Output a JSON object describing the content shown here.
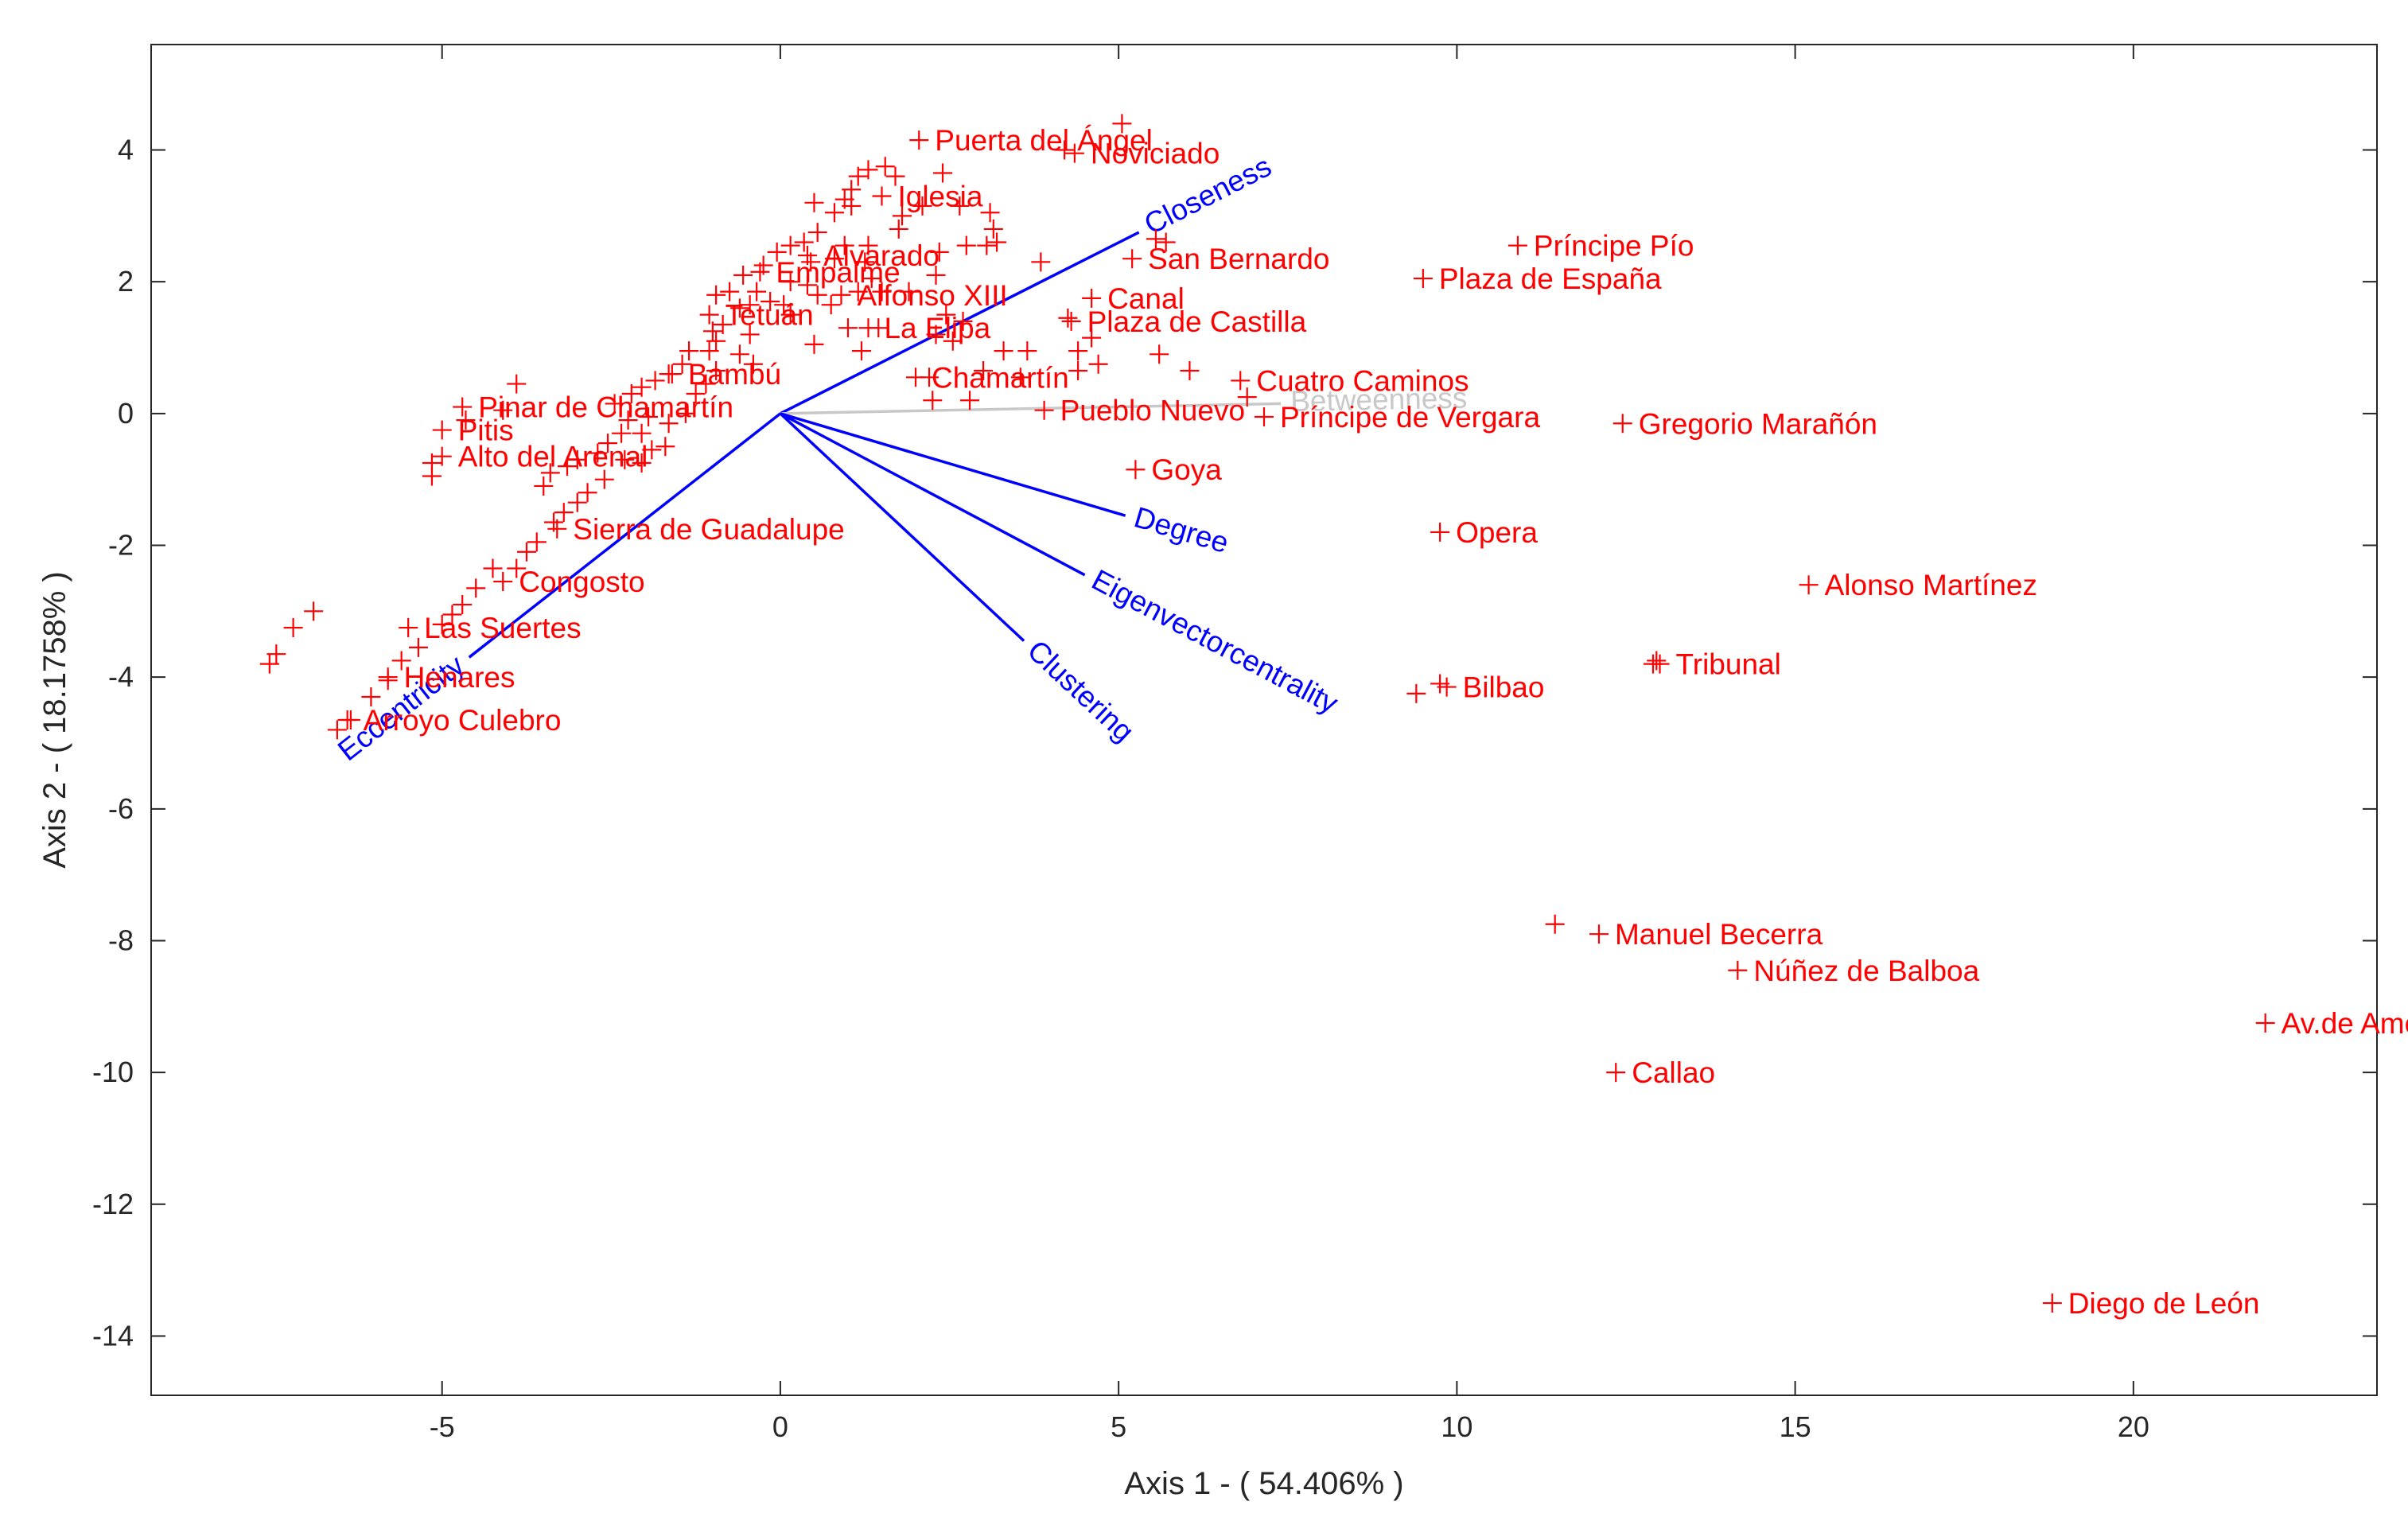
{
  "chart_data": {
    "type": "scatter",
    "subtype": "biplot",
    "title": "",
    "xlabel": "Axis 1 - ( 54.406% )",
    "ylabel": "Axis 2 - ( 18.1758% )",
    "xlim": [
      -9.3,
      23.6
    ],
    "ylim": [
      -14.9,
      5.6
    ],
    "xticks": [
      -5,
      0,
      5,
      10,
      15,
      20
    ],
    "yticks": [
      -14,
      -12,
      -10,
      -8,
      -6,
      -4,
      -2,
      0,
      2,
      4
    ],
    "grid": false,
    "colors": {
      "points": "#ff0000",
      "vectors": "#0000ff",
      "faded_vector": "#c8c8c8",
      "axes": "#262626"
    },
    "vectors": [
      {
        "name": "Closeness",
        "x": 5.3,
        "y": 2.75,
        "color": "#0000ff"
      },
      {
        "name": "Betweenness",
        "x": 7.4,
        "y": 0.15,
        "color": "#c8c8c8"
      },
      {
        "name": "Degree",
        "x": 5.1,
        "y": -1.55,
        "color": "#0000ff"
      },
      {
        "name": "Eigenvectorcentrality",
        "x": 4.5,
        "y": -2.45,
        "color": "#0000ff"
      },
      {
        "name": "Clustering",
        "x": 3.6,
        "y": -3.45,
        "color": "#0000ff"
      },
      {
        "name": "Eccentricity",
        "x": -4.6,
        "y": -3.7,
        "color": "#0000ff"
      }
    ],
    "labeled_points": [
      {
        "label": "Puerta del Ángel",
        "x": 2.05,
        "y": 4.15
      },
      {
        "label": "Noviciado",
        "x": 4.35,
        "y": 3.95
      },
      {
        "label": "Iglesia",
        "x": 1.5,
        "y": 3.3
      },
      {
        "label": "Closeness",
        "x": 5.45,
        "y": 2.7
      },
      {
        "label": "San Bernardo",
        "x": 5.2,
        "y": 2.35
      },
      {
        "label": "Alvarado",
        "x": 0.4,
        "y": 2.4
      },
      {
        "label": "Empalme",
        "x": -0.3,
        "y": 2.15
      },
      {
        "label": "Alfonso XIII",
        "x": 0.9,
        "y": 1.8
      },
      {
        "label": "Canal",
        "x": 4.6,
        "y": 1.75
      },
      {
        "label": "Tetuán",
        "x": -1.05,
        "y": 1.5
      },
      {
        "label": "La Elipa",
        "x": 1.3,
        "y": 1.3
      },
      {
        "label": "Plaza de Castilla",
        "x": 4.3,
        "y": 1.4
      },
      {
        "label": "Bambú",
        "x": -1.6,
        "y": 0.6
      },
      {
        "label": "Chamartín",
        "x": 2.0,
        "y": 0.55
      },
      {
        "label": "Cuatro Caminos",
        "x": 6.8,
        "y": 0.5
      },
      {
        "label": "Pinar de Chamartín",
        "x": -4.7,
        "y": 0.1
      },
      {
        "label": "Pueblo Nuevo",
        "x": 3.9,
        "y": 0.05
      },
      {
        "label": "Príncipe de Vergara",
        "x": 7.15,
        "y": -0.05
      },
      {
        "label": "Pitis",
        "x": -5.0,
        "y": -0.25
      },
      {
        "label": "Alto del Arenal",
        "x": -5.0,
        "y": -0.65
      },
      {
        "label": "Goya",
        "x": 5.25,
        "y": -0.85
      },
      {
        "label": "Sierra de Guadalupe",
        "x": -3.3,
        "y": -1.75
      },
      {
        "label": "Congosto",
        "x": -4.1,
        "y": -2.55
      },
      {
        "label": "Las Suertes",
        "x": -5.5,
        "y": -3.25
      },
      {
        "label": "Henares",
        "x": -5.8,
        "y": -4.0
      },
      {
        "label": "Arroyo Culebro",
        "x": -6.4,
        "y": -4.65
      },
      {
        "label": "Príncipe Pío",
        "x": 10.9,
        "y": 2.55
      },
      {
        "label": "Plaza de España",
        "x": 9.5,
        "y": 2.05
      },
      {
        "label": "Gregorio Marañón",
        "x": 12.45,
        "y": -0.15
      },
      {
        "label": "Opera",
        "x": 9.75,
        "y": -1.8
      },
      {
        "label": "Alonso Martínez",
        "x": 15.2,
        "y": -2.6
      },
      {
        "label": "Tribunal",
        "x": 13.0,
        "y": -3.8
      },
      {
        "label": "Bilbao",
        "x": 9.85,
        "y": -4.15
      },
      {
        "label": "Manuel Becerra",
        "x": 12.1,
        "y": -7.9
      },
      {
        "label": "Núñez de Balboa",
        "x": 14.15,
        "y": -8.45
      },
      {
        "label": "Callao",
        "x": 12.35,
        "y": -10.0
      },
      {
        "label": "Av.de América",
        "x": 21.95,
        "y": -9.25
      },
      {
        "label": "Diego de León",
        "x": 18.8,
        "y": -13.5
      }
    ],
    "unlabeled_points": [
      [
        5.05,
        4.4
      ],
      [
        4.2,
        4.0
      ],
      [
        2.4,
        3.65
      ],
      [
        1.3,
        3.7
      ],
      [
        1.55,
        3.75
      ],
      [
        1.7,
        3.6
      ],
      [
        1.15,
        3.6
      ],
      [
        1.05,
        3.4
      ],
      [
        0.95,
        3.25
      ],
      [
        0.5,
        3.2
      ],
      [
        0.8,
        3.05
      ],
      [
        1.05,
        3.15
      ],
      [
        1.8,
        3.0
      ],
      [
        2.1,
        3.15
      ],
      [
        2.65,
        3.15
      ],
      [
        3.1,
        3.05
      ],
      [
        3.15,
        2.8
      ],
      [
        3.05,
        2.55
      ],
      [
        3.2,
        2.6
      ],
      [
        1.75,
        2.8
      ],
      [
        1.3,
        2.55
      ],
      [
        0.95,
        2.55
      ],
      [
        0.55,
        2.75
      ],
      [
        0.35,
        2.6
      ],
      [
        0.15,
        2.55
      ],
      [
        -0.05,
        2.45
      ],
      [
        0.45,
        2.3
      ],
      [
        0.8,
        2.35
      ],
      [
        1.25,
        2.3
      ],
      [
        2.35,
        2.45
      ],
      [
        2.75,
        2.55
      ],
      [
        3.85,
        2.3
      ],
      [
        5.55,
        2.65
      ],
      [
        5.7,
        2.6
      ],
      [
        1.35,
        2.05
      ],
      [
        2.3,
        2.1
      ],
      [
        -0.25,
        2.25
      ],
      [
        -0.55,
        2.1
      ],
      [
        0.15,
        2.0
      ],
      [
        0.4,
        1.95
      ],
      [
        -0.35,
        1.85
      ],
      [
        -0.75,
        1.85
      ],
      [
        -0.95,
        1.8
      ],
      [
        0.55,
        1.8
      ],
      [
        0.75,
        1.65
      ],
      [
        1.15,
        1.85
      ],
      [
        1.5,
        1.85
      ],
      [
        1.9,
        1.85
      ],
      [
        2.45,
        1.5
      ],
      [
        2.7,
        1.4
      ],
      [
        0.05,
        1.65
      ],
      [
        0.15,
        1.5
      ],
      [
        -0.15,
        1.7
      ],
      [
        -0.45,
        1.65
      ],
      [
        -0.6,
        1.6
      ],
      [
        -0.85,
        1.35
      ],
      [
        -1.0,
        1.25
      ],
      [
        1.0,
        1.3
      ],
      [
        1.45,
        1.3
      ],
      [
        2.3,
        1.2
      ],
      [
        2.55,
        1.1
      ],
      [
        0.5,
        1.05
      ],
      [
        1.2,
        0.95
      ],
      [
        -0.45,
        1.2
      ],
      [
        -0.95,
        1.1
      ],
      [
        -1.05,
        0.95
      ],
      [
        -1.35,
        0.95
      ],
      [
        -0.4,
        0.75
      ],
      [
        -0.6,
        0.9
      ],
      [
        -0.95,
        0.65
      ],
      [
        -1.45,
        0.75
      ],
      [
        -1.65,
        0.6
      ],
      [
        3.3,
        0.95
      ],
      [
        3.65,
        0.95
      ],
      [
        4.4,
        0.95
      ],
      [
        4.7,
        0.75
      ],
      [
        5.6,
        0.9
      ],
      [
        6.05,
        0.65
      ],
      [
        -1.1,
        0.45
      ],
      [
        -1.25,
        0.3
      ],
      [
        -1.85,
        0.5
      ],
      [
        -2.05,
        0.4
      ],
      [
        -2.2,
        0.3
      ],
      [
        -2.45,
        0.15
      ],
      [
        -3.9,
        0.45
      ],
      [
        -4.1,
        0.05
      ],
      [
        2.2,
        0.55
      ],
      [
        3.0,
        0.65
      ],
      [
        3.55,
        0.55
      ],
      [
        4.4,
        0.65
      ],
      [
        2.25,
        0.2
      ],
      [
        2.8,
        0.2
      ],
      [
        -1.4,
        0.0
      ],
      [
        -1.65,
        -0.15
      ],
      [
        -1.95,
        -0.05
      ],
      [
        -2.25,
        -0.1
      ],
      [
        -2.05,
        -0.3
      ],
      [
        -2.35,
        -0.3
      ],
      [
        -2.55,
        -0.45
      ],
      [
        -2.7,
        -0.6
      ],
      [
        -2.3,
        -0.7
      ],
      [
        -2.05,
        -0.75
      ],
      [
        -1.9,
        -0.55
      ],
      [
        -1.7,
        -0.5
      ],
      [
        -3.0,
        -0.7
      ],
      [
        -3.15,
        -0.8
      ],
      [
        -3.4,
        -0.9
      ],
      [
        -3.5,
        -1.1
      ],
      [
        -2.6,
        -1.0
      ],
      [
        -2.85,
        -1.2
      ],
      [
        -3.0,
        -1.35
      ],
      [
        -3.2,
        -1.5
      ],
      [
        -3.35,
        -1.65
      ],
      [
        -3.6,
        -1.95
      ],
      [
        -3.75,
        -2.1
      ],
      [
        -3.9,
        -2.35
      ],
      [
        -4.25,
        -2.35
      ],
      [
        -4.5,
        -2.65
      ],
      [
        -4.7,
        -2.9
      ],
      [
        -4.85,
        -3.05
      ],
      [
        -5.0,
        -3.2
      ],
      [
        -5.35,
        -3.55
      ],
      [
        -5.6,
        -3.75
      ],
      [
        -5.8,
        -4.05
      ],
      [
        -6.05,
        -4.3
      ],
      [
        -6.35,
        -4.65
      ],
      [
        -6.55,
        -4.8
      ],
      [
        -6.9,
        -3.0
      ],
      [
        -7.2,
        -3.25
      ],
      [
        -7.45,
        -3.65
      ],
      [
        -7.55,
        -3.8
      ],
      [
        -5.15,
        -0.75
      ],
      [
        -5.15,
        -0.95
      ],
      [
        -4.65,
        -0.1
      ],
      [
        9.75,
        -4.1
      ],
      [
        9.4,
        -4.25
      ],
      [
        11.45,
        -7.75
      ],
      [
        12.9,
        -3.8
      ],
      [
        12.95,
        -3.75
      ],
      [
        4.25,
        1.45
      ],
      [
        4.6,
        1.15
      ],
      [
        6.9,
        0.25
      ]
    ]
  }
}
